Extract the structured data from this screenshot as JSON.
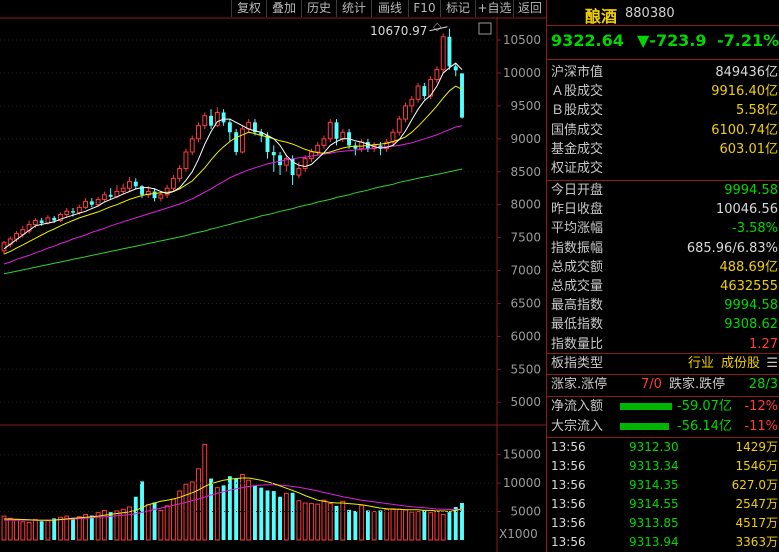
{
  "toolbar": [
    "复权",
    "叠加",
    "历史",
    "统计",
    "画线",
    "F10",
    "标记",
    "+自选",
    "返回"
  ],
  "stock": {
    "name": "酿酒",
    "code": "880380",
    "price": "9322.64",
    "change": "▼-723.9",
    "change_pct": "-7.21%"
  },
  "market_stats": [
    {
      "label": "沪深市值",
      "value": "849436亿",
      "color": "white"
    },
    {
      "label": "Ａ股成交",
      "value": "9916.40亿",
      "color": "yellow"
    },
    {
      "label": "Ｂ股成交",
      "value": "5.58亿",
      "color": "yellow"
    },
    {
      "label": "国债成交",
      "value": "6100.74亿",
      "color": "yellow"
    },
    {
      "label": "基金成交",
      "value": "603.01亿",
      "color": "yellow"
    },
    {
      "label": "权证成交",
      "value": "",
      "color": "yellow"
    }
  ],
  "index_stats": [
    {
      "label": "今日开盘",
      "value": "9994.58",
      "color": "green"
    },
    {
      "label": "昨日收盘",
      "value": "10046.56",
      "color": "white"
    },
    {
      "label": "平均涨幅",
      "value": "-3.58%",
      "color": "green"
    },
    {
      "label": "指数振幅",
      "value": "685.96/6.83%",
      "color": "white"
    },
    {
      "label": "总成交额",
      "value": "488.69亿",
      "color": "yellow"
    },
    {
      "label": "总成交量",
      "value": "4632555",
      "color": "yellow"
    },
    {
      "label": "最高指数",
      "value": "9994.58",
      "color": "green"
    },
    {
      "label": "最低指数",
      "value": "9308.62",
      "color": "green"
    },
    {
      "label": "指数量比",
      "value": "1.27",
      "color": "red"
    }
  ],
  "board": {
    "label": "板指类型",
    "type": "行业",
    "constituents": "成份股",
    "menu_icon": "list-icon"
  },
  "breadth": {
    "up_label": "涨家.涨停",
    "up_value": "7/0",
    "down_label": "跌家.跌停",
    "down_value": "28/3"
  },
  "flows": [
    {
      "label": "净流入额",
      "amount": "-59.07亿",
      "pct": "-12%",
      "bar_fraction": 1.0
    },
    {
      "label": "大宗流入",
      "amount": "-56.14亿",
      "pct": "-11%",
      "bar_fraction": 0.95
    }
  ],
  "ticks": [
    {
      "time": "13:56",
      "price": "9312.30",
      "volume": "1429万"
    },
    {
      "time": "13:56",
      "price": "9313.34",
      "volume": "1546万"
    },
    {
      "time": "13:56",
      "price": "9314.35",
      "volume": "627.0万"
    },
    {
      "time": "13:56",
      "price": "9314.55",
      "volume": "2547万"
    },
    {
      "time": "13:56",
      "price": "9313.85",
      "volume": "4517万"
    },
    {
      "time": "13:56",
      "price": "9313.94",
      "volume": "3363万"
    }
  ],
  "colors": {
    "up": "#ff3c3c",
    "down": "#54ffff",
    "ma5": "#ffffff",
    "ma10": "#f0f000",
    "ma20": "#e020e0",
    "ma60": "#30d030",
    "grid": "#8b1a1a"
  },
  "chart_data": [
    {
      "type": "candlestick",
      "title": "",
      "price_axis_ticks": [
        "10500",
        "10000",
        "9500",
        "9000",
        "8500",
        "8000",
        "7500",
        "7000",
        "6500",
        "6000",
        "5500",
        "5000"
      ],
      "ylim": [
        4700,
        10850
      ],
      "annotation": "10670.97",
      "annotation_value": 10670.97,
      "candles": [
        [
          7300,
          7420,
          7250,
          7450
        ],
        [
          7400,
          7480,
          7350,
          7520
        ],
        [
          7480,
          7560,
          7430,
          7600
        ],
        [
          7550,
          7620,
          7500,
          7680
        ],
        [
          7600,
          7700,
          7560,
          7760
        ],
        [
          7700,
          7760,
          7650,
          7800
        ],
        [
          7760,
          7720,
          7680,
          7800
        ],
        [
          7720,
          7800,
          7700,
          7840
        ],
        [
          7800,
          7760,
          7720,
          7830
        ],
        [
          7760,
          7850,
          7740,
          7880
        ],
        [
          7850,
          7900,
          7800,
          7950
        ],
        [
          7900,
          7880,
          7820,
          7950
        ],
        [
          7880,
          7960,
          7850,
          8000
        ],
        [
          7960,
          8050,
          7930,
          8100
        ],
        [
          8050,
          8000,
          7960,
          8100
        ],
        [
          8000,
          8080,
          7980,
          8120
        ],
        [
          8080,
          8150,
          8050,
          8200
        ],
        [
          8150,
          8120,
          8080,
          8250
        ],
        [
          8120,
          8200,
          8100,
          8300
        ],
        [
          8200,
          8250,
          8150,
          8320
        ],
        [
          8250,
          8350,
          8200,
          8420
        ],
        [
          8350,
          8280,
          8230,
          8400
        ],
        [
          8280,
          8150,
          8100,
          8300
        ],
        [
          8150,
          8200,
          8100,
          8280
        ],
        [
          8200,
          8100,
          8050,
          8250
        ],
        [
          8100,
          8150,
          8050,
          8200
        ],
        [
          8150,
          8250,
          8100,
          8300
        ],
        [
          8250,
          8400,
          8200,
          8450
        ],
        [
          8400,
          8550,
          8350,
          8600
        ],
        [
          8550,
          8800,
          8500,
          8850
        ],
        [
          8800,
          9000,
          8750,
          9050
        ],
        [
          9000,
          9200,
          8950,
          9250
        ],
        [
          9200,
          9350,
          9150,
          9400
        ],
        [
          9350,
          9200,
          9150,
          9450
        ],
        [
          9200,
          9400,
          9180,
          9480
        ],
        [
          9400,
          9250,
          9200,
          9450
        ],
        [
          9250,
          9100,
          8950,
          9300
        ],
        [
          9100,
          8800,
          8750,
          9150
        ],
        [
          8800,
          9150,
          8780,
          9200
        ],
        [
          9150,
          9250,
          9100,
          9300
        ],
        [
          9250,
          9100,
          9050,
          9300
        ],
        [
          9100,
          9050,
          8950,
          9150
        ],
        [
          9050,
          8800,
          8700,
          9100
        ],
        [
          8800,
          8750,
          8500,
          8900
        ],
        [
          8750,
          8600,
          8450,
          8800
        ],
        [
          8600,
          8700,
          8500,
          8750
        ],
        [
          8700,
          8450,
          8300,
          8750
        ],
        [
          8450,
          8550,
          8400,
          8650
        ],
        [
          8550,
          8700,
          8500,
          8750
        ],
        [
          8700,
          8800,
          8650,
          8850
        ],
        [
          8800,
          8900,
          8750,
          8950
        ],
        [
          8900,
          9000,
          8850,
          9050
        ],
        [
          9000,
          9250,
          8950,
          9300
        ],
        [
          9250,
          9000,
          8900,
          9300
        ],
        [
          9000,
          9100,
          8950,
          9150
        ],
        [
          9100,
          8900,
          8850,
          9150
        ],
        [
          8900,
          8850,
          8750,
          8950
        ],
        [
          8850,
          8950,
          8800,
          9000
        ],
        [
          8950,
          8850,
          8800,
          9000
        ],
        [
          8850,
          8900,
          8800,
          8950
        ],
        [
          8900,
          8850,
          8750,
          8950
        ],
        [
          8850,
          8950,
          8800,
          9000
        ],
        [
          8950,
          9100,
          8900,
          9150
        ],
        [
          9100,
          9300,
          9050,
          9350
        ],
        [
          9300,
          9500,
          9250,
          9550
        ],
        [
          9500,
          9600,
          9400,
          9650
        ],
        [
          9600,
          9800,
          9550,
          9850
        ],
        [
          9800,
          9650,
          9600,
          9850
        ],
        [
          9650,
          9900,
          9600,
          9950
        ],
        [
          9900,
          10050,
          9850,
          10100
        ],
        [
          10050,
          10550,
          10000,
          10600
        ],
        [
          10550,
          10100,
          10050,
          10670.97
        ],
        [
          10100,
          10040,
          9950,
          10150
        ],
        [
          9994.58,
          9322.64,
          9308.62,
          9994.58
        ]
      ],
      "ma5": [
        7330,
        7400,
        7470,
        7540,
        7610,
        7680,
        7700,
        7720,
        7740,
        7780,
        7810,
        7840,
        7870,
        7900,
        7940,
        7980,
        8040,
        8080,
        8120,
        8160,
        8200,
        8240,
        8260,
        8260,
        8240,
        8200,
        8170,
        8200,
        8260,
        8370,
        8500,
        8690,
        8920,
        9110,
        9260,
        9300,
        9300,
        9250,
        9200,
        9150,
        9120,
        9100,
        9050,
        9000,
        8900,
        8750,
        8650,
        8600,
        8580,
        8610,
        8700,
        8790,
        8900,
        8960,
        9000,
        9000,
        8970,
        8950,
        8920,
        8880,
        8860,
        8870,
        8900,
        8990,
        9120,
        9290,
        9450,
        9580,
        9660,
        9800,
        10000,
        10080,
        10150,
        10050
      ],
      "ma10": [
        7250,
        7290,
        7340,
        7390,
        7440,
        7490,
        7540,
        7590,
        7630,
        7680,
        7720,
        7760,
        7800,
        7830,
        7860,
        7890,
        7930,
        7970,
        8000,
        8040,
        8080,
        8110,
        8140,
        8160,
        8170,
        8180,
        8190,
        8200,
        8240,
        8300,
        8360,
        8460,
        8560,
        8680,
        8790,
        8880,
        8960,
        9020,
        9060,
        9100,
        9080,
        9050,
        9030,
        9000,
        8970,
        8950,
        8920,
        8880,
        8840,
        8810,
        8790,
        8780,
        8800,
        8830,
        8860,
        8880,
        8890,
        8890,
        8900,
        8910,
        8920,
        8930,
        8960,
        8990,
        9030,
        9100,
        9190,
        9290,
        9390,
        9500,
        9620,
        9730,
        9800,
        9750
      ],
      "ma20": [
        7100,
        7130,
        7170,
        7200,
        7230,
        7270,
        7300,
        7340,
        7370,
        7410,
        7440,
        7480,
        7510,
        7540,
        7580,
        7610,
        7640,
        7680,
        7710,
        7740,
        7770,
        7800,
        7830,
        7860,
        7890,
        7920,
        7950,
        7980,
        8010,
        8050,
        8090,
        8140,
        8190,
        8240,
        8300,
        8350,
        8410,
        8450,
        8490,
        8530,
        8560,
        8590,
        8620,
        8640,
        8660,
        8680,
        8700,
        8710,
        8720,
        8740,
        8750,
        8770,
        8780,
        8800,
        8810,
        8820,
        8830,
        8840,
        8850,
        8860,
        8870,
        8880,
        8890,
        8900,
        8920,
        8940,
        8970,
        9000,
        9030,
        9060,
        9100,
        9140,
        9180,
        9200
      ],
      "ma60": [
        6950,
        6970,
        6990,
        7010,
        7030,
        7050,
        7070,
        7090,
        7110,
        7130,
        7150,
        7170,
        7190,
        7210,
        7230,
        7250,
        7270,
        7290,
        7310,
        7330,
        7350,
        7370,
        7390,
        7410,
        7430,
        7450,
        7470,
        7490,
        7510,
        7530,
        7560,
        7580,
        7600,
        7630,
        7650,
        7680,
        7700,
        7730,
        7750,
        7780,
        7800,
        7830,
        7850,
        7870,
        7900,
        7920,
        7940,
        7970,
        7990,
        8010,
        8040,
        8060,
        8080,
        8110,
        8130,
        8150,
        8180,
        8200,
        8220,
        8250,
        8270,
        8290,
        8310,
        8340,
        8360,
        8380,
        8400,
        8420,
        8440,
        8460,
        8480,
        8500,
        8520,
        8540
      ]
    },
    {
      "type": "bar",
      "title": "",
      "unit_label": "X1000",
      "volume_axis_ticks": [
        "15000",
        "10000",
        "5000"
      ],
      "ylim": [
        0,
        19500
      ],
      "values": [
        4200,
        3800,
        3500,
        3200,
        3100,
        3600,
        3300,
        3400,
        3800,
        4000,
        4200,
        3900,
        4100,
        4500,
        4300,
        4800,
        5200,
        4900,
        5100,
        5400,
        5800,
        7600,
        10300,
        6200,
        6600,
        5200,
        6000,
        7200,
        8600,
        9800,
        10200,
        12500,
        16800,
        10800,
        9200,
        9600,
        11200,
        10800,
        11500,
        10500,
        9500,
        9200,
        8700,
        8600,
        7600,
        8200,
        8300,
        6900,
        6500,
        6400,
        6300,
        7000,
        6400,
        6000,
        6800,
        5300,
        5100,
        6100,
        5200,
        5000,
        5200,
        5400,
        5500,
        5400,
        5300,
        4900,
        5000,
        5200,
        4800,
        5000,
        4500,
        4900,
        5800,
        6500
      ],
      "ma5": [
        3700,
        3680,
        3650,
        3600,
        3550,
        3500,
        3480,
        3470,
        3500,
        3600,
        3700,
        3800,
        3900,
        4000,
        4100,
        4200,
        4350,
        4500,
        4650,
        4800,
        4950,
        5200,
        5700,
        6200,
        6500,
        6800,
        7000,
        7200,
        7500,
        7900,
        8300,
        8800,
        9400,
        9900,
        10200,
        10500,
        10700,
        10800,
        10900,
        10900,
        10700,
        10500,
        10200,
        9900,
        9500,
        9100,
        8700,
        8300,
        7800,
        7400,
        7000,
        6800,
        6600,
        6500,
        6500,
        6400,
        6300,
        6200,
        6000,
        5800,
        5600,
        5500,
        5400,
        5400,
        5300,
        5300,
        5300,
        5200,
        5200,
        5100,
        5100,
        5000,
        5200,
        5500
      ],
      "ma10": [
        3500,
        3500,
        3500,
        3500,
        3500,
        3500,
        3500,
        3500,
        3520,
        3560,
        3620,
        3680,
        3750,
        3820,
        3900,
        3980,
        4060,
        4150,
        4250,
        4350,
        4460,
        4600,
        4850,
        5100,
        5350,
        5600,
        5850,
        6100,
        6350,
        6600,
        6900,
        7200,
        7550,
        7900,
        8200,
        8500,
        8750,
        9000,
        9200,
        9400,
        9550,
        9650,
        9700,
        9700,
        9650,
        9550,
        9400,
        9250,
        9050,
        8850,
        8600,
        8350,
        8100,
        7850,
        7600,
        7400,
        7200,
        7000,
        6850,
        6700,
        6550,
        6400,
        6250,
        6100,
        5950,
        5850,
        5750,
        5650,
        5550,
        5450,
        5400,
        5350,
        5300,
        5300
      ]
    }
  ]
}
